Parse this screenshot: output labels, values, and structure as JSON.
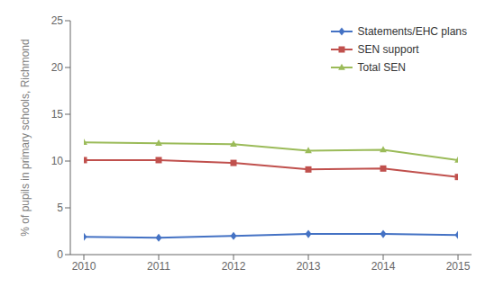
{
  "chart_data": {
    "type": "line",
    "x": [
      2010,
      2011,
      2012,
      2013,
      2014,
      2015
    ],
    "xlim": [
      2010,
      2015
    ],
    "xticks": [
      2010,
      2011,
      2012,
      2013,
      2014,
      2015
    ],
    "ylim": [
      0,
      25
    ],
    "yticks": [
      0,
      5,
      10,
      15,
      20,
      25
    ],
    "ylabel": "% of pupils in primary schools, Richmond",
    "grid": false,
    "legend": "upper right",
    "series": [
      {
        "name": "Statements/EHC plans",
        "color": "#4472C4",
        "marker": "diamond",
        "values": [
          1.9,
          1.8,
          2.0,
          2.2,
          2.2,
          2.1
        ]
      },
      {
        "name": "SEN support",
        "color": "#C0504D",
        "marker": "square",
        "values": [
          10.1,
          10.1,
          9.8,
          9.1,
          9.2,
          8.3
        ]
      },
      {
        "name": "Total SEN",
        "color": "#9BBB59",
        "marker": "triangle",
        "values": [
          12.0,
          11.9,
          11.8,
          11.1,
          11.2,
          10.1
        ]
      }
    ]
  }
}
